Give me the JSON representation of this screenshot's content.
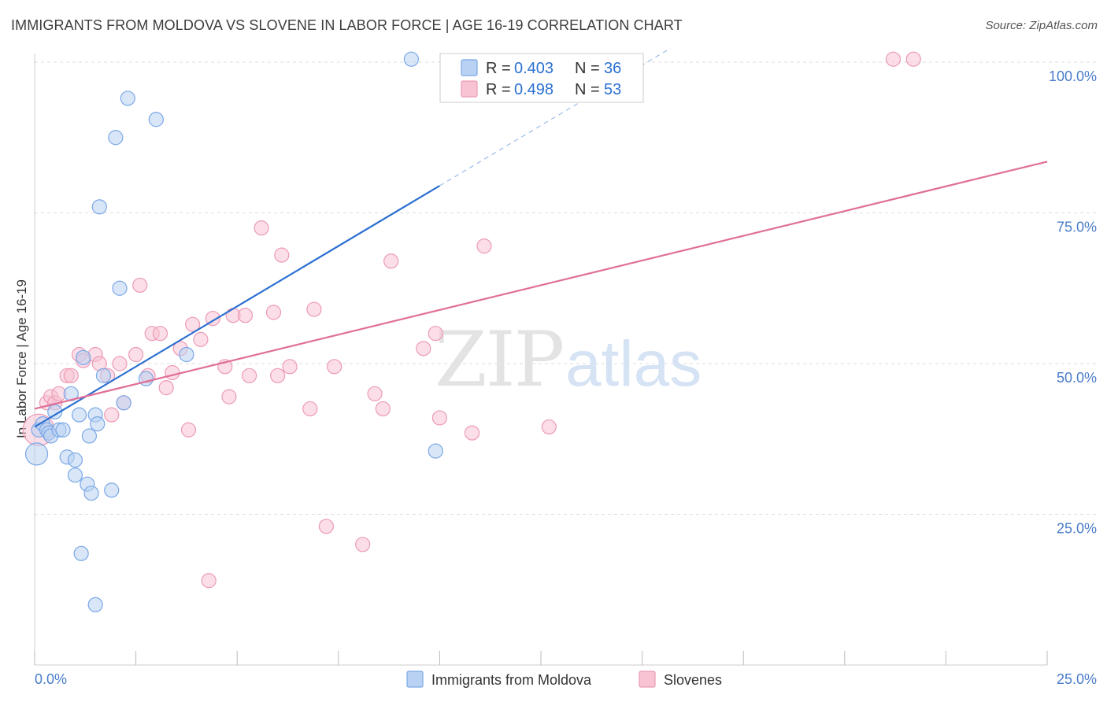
{
  "title": "IMMIGRANTS FROM MOLDOVA VS SLOVENE IN LABOR FORCE | AGE 16-19 CORRELATION CHART",
  "source": "Source: ZipAtlas.com",
  "watermark": {
    "zip": "ZIP",
    "atlas": "atlas"
  },
  "colors": {
    "blue_fill": "#b9d2f3",
    "blue_stroke": "#7aa8e6",
    "blue_line": "#2c70d1",
    "pink_fill": "#f8c3d3",
    "pink_stroke": "#ec9bb5",
    "pink_line": "#e06f97",
    "tick_text": "#4a7cc9",
    "grid": "#dddddd"
  },
  "legend": {
    "r_label": "R =",
    "n_label": "N =",
    "rows": [
      {
        "r": "0.403",
        "n": "36"
      },
      {
        "r": "0.498",
        "n": "53"
      }
    ]
  },
  "chart_data": {
    "type": "scatter",
    "title": "IMMIGRANTS FROM MOLDOVA VS SLOVENE IN LABOR FORCE | AGE 16-19 CORRELATION CHART",
    "xlabel": "",
    "ylabel": "In Labor Force | Age 16-19",
    "xlim": [
      0,
      25
    ],
    "ylim": [
      0,
      100
    ],
    "x_tick_labels": [
      "0.0%",
      "25.0%"
    ],
    "y_tick_labels": [
      "25.0%",
      "50.0%",
      "75.0%",
      "100.0%"
    ],
    "y_tick_values": [
      25,
      50,
      75,
      100
    ],
    "series": [
      {
        "name": "Immigrants from Moldova",
        "color": "blue",
        "r": 0.403,
        "n": 36,
        "trend": {
          "x0": 0,
          "y0": 39.5,
          "x1": 10,
          "y1": 79.5,
          "dashed_to_x": 15.7
        },
        "points": [
          [
            0.05,
            35,
            14
          ],
          [
            0.1,
            39,
            9
          ],
          [
            0.2,
            40,
            9
          ],
          [
            0.3,
            39,
            9
          ],
          [
            0.35,
            38.5,
            9
          ],
          [
            0.4,
            38,
            9
          ],
          [
            0.5,
            42,
            9
          ],
          [
            0.6,
            39,
            9
          ],
          [
            0.7,
            39,
            9
          ],
          [
            0.8,
            34.5,
            9
          ],
          [
            0.9,
            45,
            9
          ],
          [
            1.0,
            31.5,
            9
          ],
          [
            1.0,
            34,
            9
          ],
          [
            1.1,
            41.5,
            9
          ],
          [
            1.15,
            18.5,
            9
          ],
          [
            1.2,
            51,
            9
          ],
          [
            1.3,
            30,
            9
          ],
          [
            1.35,
            38,
            9
          ],
          [
            1.4,
            28.5,
            9
          ],
          [
            1.5,
            10,
            9
          ],
          [
            1.5,
            41.5,
            9
          ],
          [
            1.55,
            40,
            9
          ],
          [
            1.6,
            76,
            9
          ],
          [
            1.7,
            48,
            9
          ],
          [
            1.9,
            29,
            9
          ],
          [
            2.0,
            87.5,
            9
          ],
          [
            2.1,
            62.5,
            9
          ],
          [
            2.2,
            43.5,
            9
          ],
          [
            2.3,
            94,
            9
          ],
          [
            2.75,
            47.5,
            9
          ],
          [
            3.0,
            90.5,
            9
          ],
          [
            3.75,
            51.5,
            9
          ],
          [
            9.3,
            100.5,
            9
          ],
          [
            9.9,
            35.5,
            9
          ]
        ]
      },
      {
        "name": "Slovenes",
        "color": "pink",
        "r": 0.498,
        "n": 53,
        "trend": {
          "x0": 0,
          "y0": 42.5,
          "x1": 25,
          "y1": 83.5
        },
        "points": [
          [
            0.1,
            39,
            20
          ],
          [
            0.3,
            43.5,
            9
          ],
          [
            0.4,
            44.5,
            9
          ],
          [
            0.5,
            43.5,
            9
          ],
          [
            0.6,
            45,
            9
          ],
          [
            0.8,
            48,
            9
          ],
          [
            0.9,
            48,
            9
          ],
          [
            1.1,
            51.5,
            9
          ],
          [
            1.2,
            50.5,
            9
          ],
          [
            1.5,
            51.5,
            9
          ],
          [
            1.6,
            50,
            9
          ],
          [
            1.8,
            48,
            9
          ],
          [
            1.9,
            41.5,
            9
          ],
          [
            2.1,
            50,
            9
          ],
          [
            2.2,
            43.5,
            9
          ],
          [
            2.5,
            51.5,
            9
          ],
          [
            2.6,
            63,
            9
          ],
          [
            2.8,
            48,
            9
          ],
          [
            2.9,
            55,
            9
          ],
          [
            3.1,
            55,
            9
          ],
          [
            3.25,
            46,
            9
          ],
          [
            3.4,
            48.5,
            9
          ],
          [
            3.6,
            52.5,
            9
          ],
          [
            3.8,
            39,
            9
          ],
          [
            3.9,
            56.5,
            9
          ],
          [
            4.1,
            54,
            9
          ],
          [
            4.3,
            14,
            9
          ],
          [
            4.4,
            57.5,
            9
          ],
          [
            4.7,
            49.5,
            9
          ],
          [
            4.8,
            44.5,
            9
          ],
          [
            4.9,
            58,
            9
          ],
          [
            5.2,
            58,
            9
          ],
          [
            5.3,
            48,
            9
          ],
          [
            5.6,
            72.5,
            9
          ],
          [
            5.9,
            58.5,
            9
          ],
          [
            6.0,
            48,
            9
          ],
          [
            6.1,
            68,
            9
          ],
          [
            6.3,
            49.5,
            9
          ],
          [
            6.8,
            42.5,
            9
          ],
          [
            6.9,
            59,
            9
          ],
          [
            7.2,
            23,
            9
          ],
          [
            7.4,
            49.5,
            9
          ],
          [
            8.1,
            20,
            9
          ],
          [
            8.4,
            45,
            9
          ],
          [
            8.6,
            42.5,
            9
          ],
          [
            8.8,
            67,
            9
          ],
          [
            9.6,
            52.5,
            9
          ],
          [
            9.9,
            55,
            9
          ],
          [
            10.0,
            41,
            9
          ],
          [
            10.8,
            38.5,
            9
          ],
          [
            11.1,
            69.5,
            9
          ],
          [
            12.7,
            39.5,
            9
          ],
          [
            21.2,
            100.5,
            9
          ],
          [
            21.7,
            100.5,
            9
          ]
        ]
      }
    ],
    "legend_placement": "top-center"
  }
}
